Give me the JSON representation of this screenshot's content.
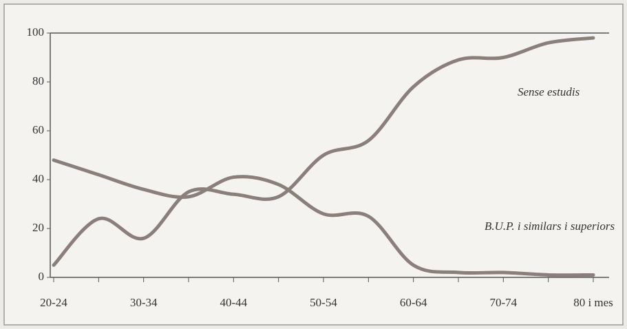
{
  "chart_data": {
    "type": "line",
    "categories": [
      "20-24",
      null,
      "30-34",
      null,
      "40-44",
      null,
      "50-54",
      null,
      "60-64",
      null,
      "70-74",
      null,
      "80 i mes"
    ],
    "series": [
      {
        "name": "Sense estudis",
        "color": "#8a7f7b",
        "values": [
          5,
          24,
          16,
          35,
          34,
          33,
          50,
          56,
          78,
          89,
          90,
          96,
          98
        ]
      },
      {
        "name": "B.U.P. i similars i superiors",
        "color": "#8a7f7b",
        "values": [
          48,
          42,
          36,
          33,
          41,
          38,
          26,
          25,
          5,
          2,
          2,
          1,
          1
        ]
      }
    ],
    "ylim": [
      0,
      100
    ],
    "yticks": [
      0,
      20,
      40,
      60,
      80,
      100
    ],
    "grid": false
  }
}
